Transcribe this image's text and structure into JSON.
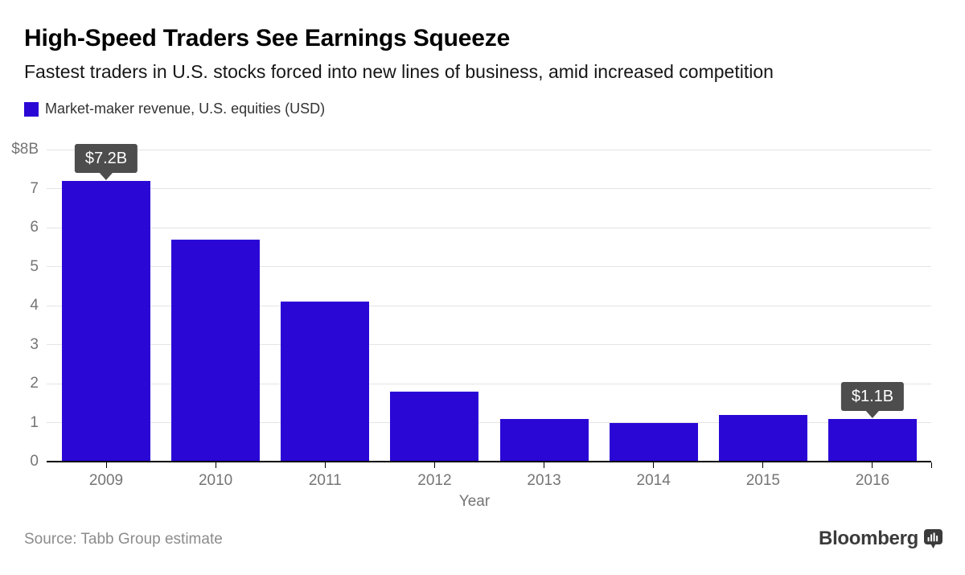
{
  "header": {
    "title": "High-Speed Traders See Earnings Squeeze",
    "subtitle": "Fastest traders in U.S. stocks forced into new lines of business, amid increased competition",
    "legend": {
      "label": "Market-maker revenue, U.S. equities (USD)",
      "swatch_color": "#2b07d6"
    }
  },
  "chart_data": {
    "type": "bar",
    "title": "Market-maker revenue, U.S. equities (USD)",
    "categories": [
      "2009",
      "2010",
      "2011",
      "2012",
      "2013",
      "2014",
      "2015",
      "2016"
    ],
    "values": [
      7.2,
      5.7,
      4.1,
      1.8,
      1.1,
      1.0,
      1.2,
      1.1
    ],
    "xlabel": "Year",
    "ylabel": "",
    "ylim": [
      0,
      8
    ],
    "ytick_labels": [
      "0",
      "1",
      "2",
      "3",
      "4",
      "5",
      "6",
      "7",
      "$8B"
    ],
    "grid": true,
    "legend_position": "top-left",
    "bar_color": "#2b07d6",
    "annotations": [
      {
        "category": "2009",
        "label": "$7.2B"
      },
      {
        "category": "2016",
        "label": "$1.1B"
      }
    ]
  },
  "footer": {
    "source": "Source: Tabb Group estimate",
    "brand": "Bloomberg",
    "brand_icon": "bloomberg-chart-icon"
  },
  "colors": {
    "bar": "#2b07d6",
    "gridline": "#e4e4e4",
    "axis_line": "#000000",
    "tick_label": "#757575",
    "tooltip_bg": "#4d4d4d",
    "tooltip_text": "#ffffff",
    "source_text": "#8c8c8c",
    "brand_text": "#3b3b3b"
  }
}
